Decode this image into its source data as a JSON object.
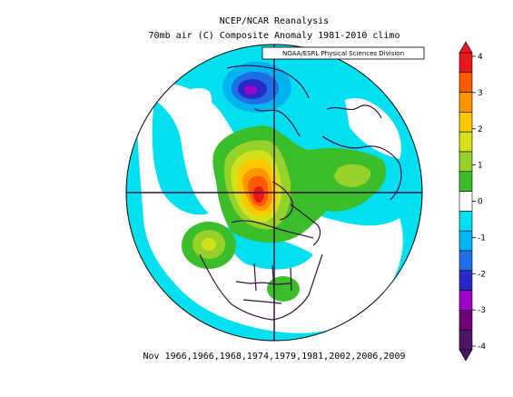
{
  "title": "NCEP/NCAR Reanalysis",
  "subtitle": "70mb air (C) Composite Anomaly 1981-2010 climo",
  "credit": "NOAA/ESRL Physical Sciences Division",
  "footer": "Nov 1966,1966,1968,1974,1979,1981,2002,2006,2009",
  "projection": "north-polar-stereographic",
  "colorbar": {
    "ticks": [
      "4",
      "3",
      "2",
      "1",
      "0",
      "-1",
      "-2",
      "-3",
      "-4"
    ],
    "bins": [
      {
        "range": "3.5 to 4",
        "color": "#e8171e"
      },
      {
        "range": "3 to 3.5",
        "color": "#ff5a00"
      },
      {
        "range": "2.5 to 3",
        "color": "#ff9600"
      },
      {
        "range": "2 to 2.5",
        "color": "#ffc800"
      },
      {
        "range": "1.5 to 2",
        "color": "#d4e21c"
      },
      {
        "range": "1 to 1.5",
        "color": "#96d229"
      },
      {
        "range": "0.5 to 1",
        "color": "#3cbe2a"
      },
      {
        "range": "-0.5 to 0.5",
        "color": "#ffffff"
      },
      {
        "range": "-1 to -0.5",
        "color": "#00e0f0"
      },
      {
        "range": "-1.5 to -1",
        "color": "#00b4f0"
      },
      {
        "range": "-2 to -1.5",
        "color": "#1e6ee6"
      },
      {
        "range": "-2.5 to -2",
        "color": "#2828c8"
      },
      {
        "range": "-3 to -2.5",
        "color": "#a000c8"
      },
      {
        "range": "-3.5 to -3",
        "color": "#6e0078"
      },
      {
        "range": "-4 to -3.5",
        "color": "#4b1464"
      }
    ]
  },
  "colors": {
    "coastline": "#3a1040",
    "frame": "#000000"
  }
}
